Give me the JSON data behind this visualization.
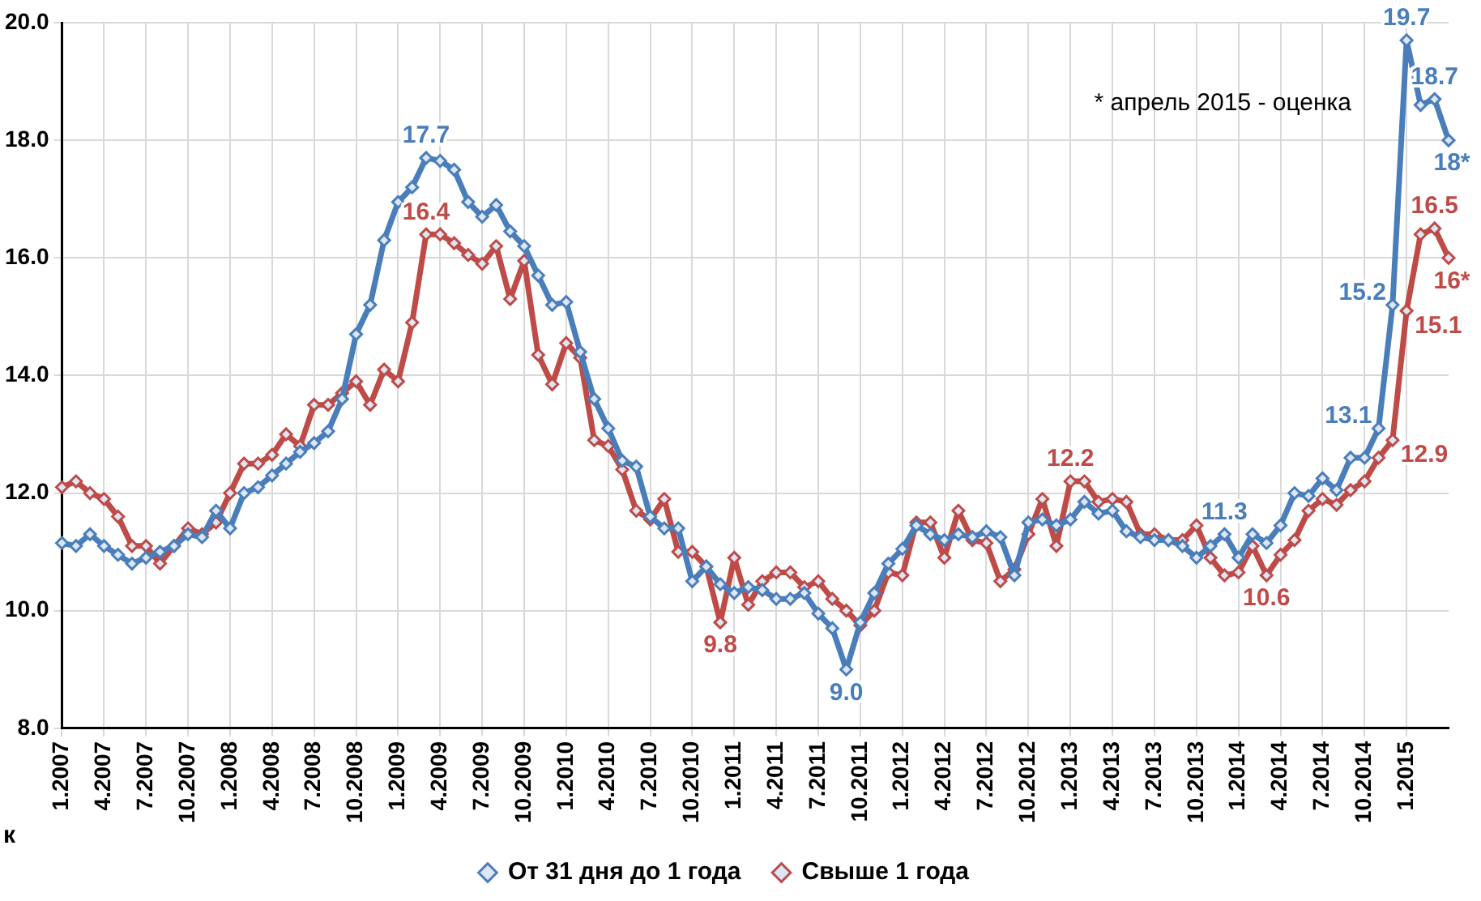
{
  "chart_data": {
    "type": "line",
    "categories": [
      "1.2007",
      null,
      null,
      "4.2007",
      null,
      null,
      "7.2007",
      null,
      null,
      "10.2007",
      null,
      null,
      "1.2008",
      null,
      null,
      "4.2008",
      null,
      null,
      "7.2008",
      null,
      null,
      "10.2008",
      null,
      null,
      "1.2009",
      null,
      null,
      "4.2009",
      null,
      null,
      "7.2009",
      null,
      null,
      "10.2009",
      null,
      null,
      "1.2010",
      null,
      null,
      "4.2010",
      null,
      null,
      "7.2010",
      null,
      null,
      "10.2010",
      null,
      null,
      "1.2011",
      null,
      null,
      "4.2011",
      null,
      null,
      "7.2011",
      null,
      null,
      "10.2011",
      null,
      null,
      "1.2012",
      null,
      null,
      "4.2012",
      null,
      null,
      "7.2012",
      null,
      null,
      "10.2012",
      null,
      null,
      "1.2013",
      null,
      null,
      "4.2013",
      null,
      null,
      "7.2013",
      null,
      null,
      "10.2013",
      null,
      null,
      "1.2014",
      null,
      null,
      "4.2014",
      null,
      null,
      "7.2014",
      null,
      null,
      "10.2014",
      null,
      null,
      "1.2015",
      null,
      null,
      null
    ],
    "series": [
      {
        "name": "От 31 дня до 1 года",
        "color": "#4a7ebb",
        "values": [
          11.15,
          11.1,
          11.3,
          11.1,
          10.95,
          10.8,
          10.9,
          11.0,
          11.1,
          11.3,
          11.25,
          11.7,
          11.4,
          12.0,
          12.1,
          12.3,
          12.5,
          12.7,
          12.85,
          13.05,
          13.6,
          14.7,
          15.2,
          16.3,
          16.95,
          17.2,
          17.7,
          17.65,
          17.5,
          16.95,
          16.7,
          16.9,
          16.45,
          16.2,
          15.7,
          15.2,
          15.25,
          14.4,
          13.6,
          13.1,
          12.55,
          12.45,
          11.6,
          11.4,
          11.4,
          10.5,
          10.75,
          10.45,
          10.3,
          10.4,
          10.35,
          10.2,
          10.2,
          10.3,
          9.95,
          9.7,
          9.0,
          9.8,
          10.3,
          10.8,
          11.05,
          11.45,
          11.3,
          11.2,
          11.3,
          11.25,
          11.35,
          11.25,
          10.6,
          11.5,
          11.55,
          11.45,
          11.55,
          11.85,
          11.65,
          11.7,
          11.35,
          11.25,
          11.2,
          11.2,
          11.1,
          10.9,
          11.1,
          11.3,
          10.9,
          11.3,
          11.15,
          11.45,
          12.0,
          11.95,
          12.25,
          12.05,
          12.6,
          12.6,
          13.1,
          15.2,
          19.7,
          18.6,
          18.7,
          18.0
        ],
        "value_labels": [
          null,
          null,
          null,
          null,
          null,
          null,
          null,
          null,
          null,
          null,
          null,
          null,
          null,
          null,
          null,
          null,
          null,
          null,
          null,
          null,
          null,
          null,
          null,
          null,
          null,
          null,
          "17.7",
          null,
          null,
          null,
          null,
          null,
          null,
          null,
          null,
          null,
          null,
          null,
          null,
          null,
          null,
          null,
          null,
          null,
          null,
          null,
          null,
          null,
          null,
          null,
          null,
          null,
          null,
          null,
          null,
          null,
          "9.0",
          null,
          null,
          null,
          null,
          null,
          null,
          null,
          null,
          null,
          null,
          null,
          null,
          null,
          null,
          null,
          null,
          null,
          null,
          null,
          null,
          null,
          null,
          null,
          null,
          null,
          null,
          "11.3",
          null,
          null,
          null,
          null,
          null,
          null,
          null,
          null,
          null,
          null,
          "13.1",
          "15.2",
          "19.7",
          null,
          "18.7",
          "18*"
        ]
      },
      {
        "name": "Свыше 1 года",
        "color": "#be4b48",
        "values": [
          12.1,
          12.2,
          12.0,
          11.9,
          11.6,
          11.1,
          11.1,
          10.8,
          11.1,
          11.4,
          11.3,
          11.5,
          12.0,
          12.5,
          12.5,
          12.65,
          13.0,
          12.8,
          13.5,
          13.5,
          13.7,
          13.9,
          13.5,
          14.1,
          13.9,
          14.9,
          16.4,
          16.4,
          16.25,
          16.05,
          15.9,
          16.2,
          15.3,
          15.95,
          14.35,
          13.85,
          14.55,
          14.3,
          12.9,
          12.8,
          12.4,
          11.7,
          11.55,
          11.9,
          11.0,
          11.0,
          10.75,
          9.8,
          10.9,
          10.1,
          10.5,
          10.65,
          10.65,
          10.4,
          10.5,
          10.2,
          10.0,
          9.75,
          10.0,
          10.65,
          10.6,
          11.5,
          11.5,
          10.9,
          11.7,
          11.2,
          11.15,
          10.5,
          10.7,
          11.3,
          11.9,
          11.1,
          12.2,
          12.2,
          11.85,
          11.9,
          11.85,
          11.3,
          11.3,
          11.2,
          11.2,
          11.45,
          10.9,
          10.6,
          10.65,
          11.1,
          10.6,
          10.95,
          11.2,
          11.7,
          11.9,
          11.8,
          12.05,
          12.2,
          12.6,
          12.9,
          15.1,
          16.4,
          16.5,
          16.0
        ],
        "value_labels": [
          null,
          null,
          null,
          null,
          null,
          null,
          null,
          null,
          null,
          null,
          null,
          null,
          null,
          null,
          null,
          null,
          null,
          null,
          null,
          null,
          null,
          null,
          null,
          null,
          null,
          null,
          "16.4",
          null,
          null,
          null,
          null,
          null,
          null,
          null,
          null,
          null,
          null,
          null,
          null,
          null,
          null,
          null,
          null,
          null,
          null,
          null,
          null,
          "9.8",
          null,
          null,
          null,
          null,
          null,
          null,
          null,
          null,
          null,
          null,
          null,
          null,
          null,
          null,
          null,
          null,
          null,
          null,
          null,
          null,
          null,
          null,
          null,
          null,
          "12.2",
          null,
          null,
          null,
          null,
          null,
          null,
          null,
          null,
          null,
          null,
          null,
          null,
          null,
          "10.6",
          null,
          null,
          null,
          null,
          null,
          null,
          null,
          null,
          "12.9",
          "15.1",
          null,
          "16.5",
          "16*"
        ]
      }
    ],
    "ylim": [
      8,
      20
    ],
    "yticks": [
      {
        "value": 8,
        "label": "8.0"
      },
      {
        "value": 10,
        "label": "10.0"
      },
      {
        "value": 12,
        "label": "12.0"
      },
      {
        "value": 14,
        "label": "14.0"
      },
      {
        "value": 16,
        "label": "16.0"
      },
      {
        "value": 18,
        "label": "18.0"
      },
      {
        "value": 20,
        "label": "20.0"
      }
    ],
    "annotations": [
      "* апрель 2015 - оценка",
      "к"
    ],
    "grid": true,
    "legend": "bottom",
    "marker": "diamond",
    "line_style": "solid"
  }
}
